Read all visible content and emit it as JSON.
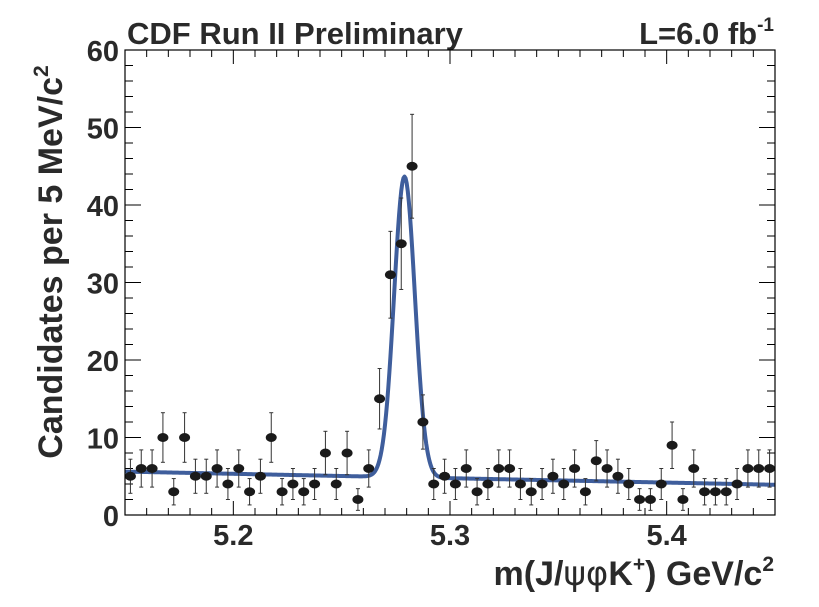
{
  "chart_data": {
    "type": "scatter",
    "title": "CDF Run II Preliminary",
    "luminosity": {
      "prefix": "L=6.0 fb",
      "exponent": "-1"
    },
    "ylabel": {
      "main": "Candidates per 5 MeV/c",
      "exponent": "2"
    },
    "xlabel": {
      "prefix": "m(J/",
      "greek1": "ψ",
      "greek2": "φ",
      "particle": "K",
      "charge": "+",
      "suffix": ") GeV/c",
      "exponent": "2"
    },
    "xlim": [
      5.15,
      5.45
    ],
    "ylim": [
      0,
      60
    ],
    "x_ticks": [
      5.2,
      5.3,
      5.4
    ],
    "x_tick_labels": [
      "5.2",
      "5.3",
      "5.4"
    ],
    "y_ticks": [
      0,
      10,
      20,
      30,
      40,
      50,
      60
    ],
    "y_tick_labels": [
      "0",
      "10",
      "20",
      "30",
      "40",
      "50",
      "60"
    ],
    "grid": false,
    "colors": {
      "points": "#1a1a1a",
      "fit": "#3f5e9c",
      "frame": "#000000"
    },
    "series": [
      {
        "name": "data",
        "x": [
          5.1525,
          5.1575,
          5.1625,
          5.1675,
          5.1725,
          5.1775,
          5.1825,
          5.1875,
          5.1925,
          5.1975,
          5.2025,
          5.2075,
          5.2125,
          5.2175,
          5.2225,
          5.2275,
          5.2325,
          5.2375,
          5.2425,
          5.2475,
          5.2525,
          5.2575,
          5.2625,
          5.2675,
          5.2725,
          5.2775,
          5.2825,
          5.2875,
          5.2925,
          5.2975,
          5.3025,
          5.3075,
          5.3125,
          5.3175,
          5.3225,
          5.3275,
          5.3325,
          5.3375,
          5.3425,
          5.3475,
          5.3525,
          5.3575,
          5.3625,
          5.3675,
          5.3725,
          5.3775,
          5.3825,
          5.3875,
          5.3925,
          5.3975,
          5.4025,
          5.4075,
          5.4125,
          5.4175,
          5.4225,
          5.4275,
          5.4325,
          5.4375,
          5.4425,
          5.4475
        ],
        "y": [
          5,
          6,
          6,
          10,
          3,
          10,
          5,
          5,
          6,
          4,
          6,
          3,
          5,
          10,
          3,
          4,
          3,
          4,
          8,
          4,
          8,
          2,
          6,
          15,
          31,
          35,
          45,
          12,
          4,
          5,
          4,
          6,
          3,
          4,
          6,
          6,
          4,
          3,
          4,
          5,
          4,
          6,
          3,
          7,
          6,
          5,
          4,
          2,
          2,
          4,
          9,
          2,
          6,
          3,
          3,
          3,
          4,
          6,
          6,
          6
        ],
        "y_err": [
          2.2,
          2.4,
          2.4,
          3.2,
          1.7,
          3.2,
          2.2,
          2.2,
          2.4,
          2.0,
          2.4,
          1.7,
          2.2,
          3.2,
          1.7,
          2.0,
          1.7,
          2.0,
          2.8,
          2.0,
          2.8,
          1.4,
          2.4,
          3.9,
          5.6,
          5.9,
          6.7,
          3.5,
          2.0,
          2.2,
          2.0,
          2.4,
          1.7,
          2.0,
          2.4,
          2.4,
          2.0,
          1.7,
          2.0,
          2.2,
          2.0,
          2.4,
          1.7,
          2.6,
          2.4,
          2.2,
          2.0,
          1.4,
          1.4,
          2.0,
          3.0,
          1.4,
          2.4,
          1.7,
          1.7,
          1.7,
          2.0,
          2.4,
          2.4,
          2.4
        ]
      },
      {
        "name": "fit",
        "model": "linear background plus Gaussian peak",
        "background_at_xmin": 5.6,
        "background_at_xmax": 3.9,
        "peak_mean": 5.279,
        "peak_sigma": 0.0048,
        "peak_height": 38.8
      }
    ]
  }
}
